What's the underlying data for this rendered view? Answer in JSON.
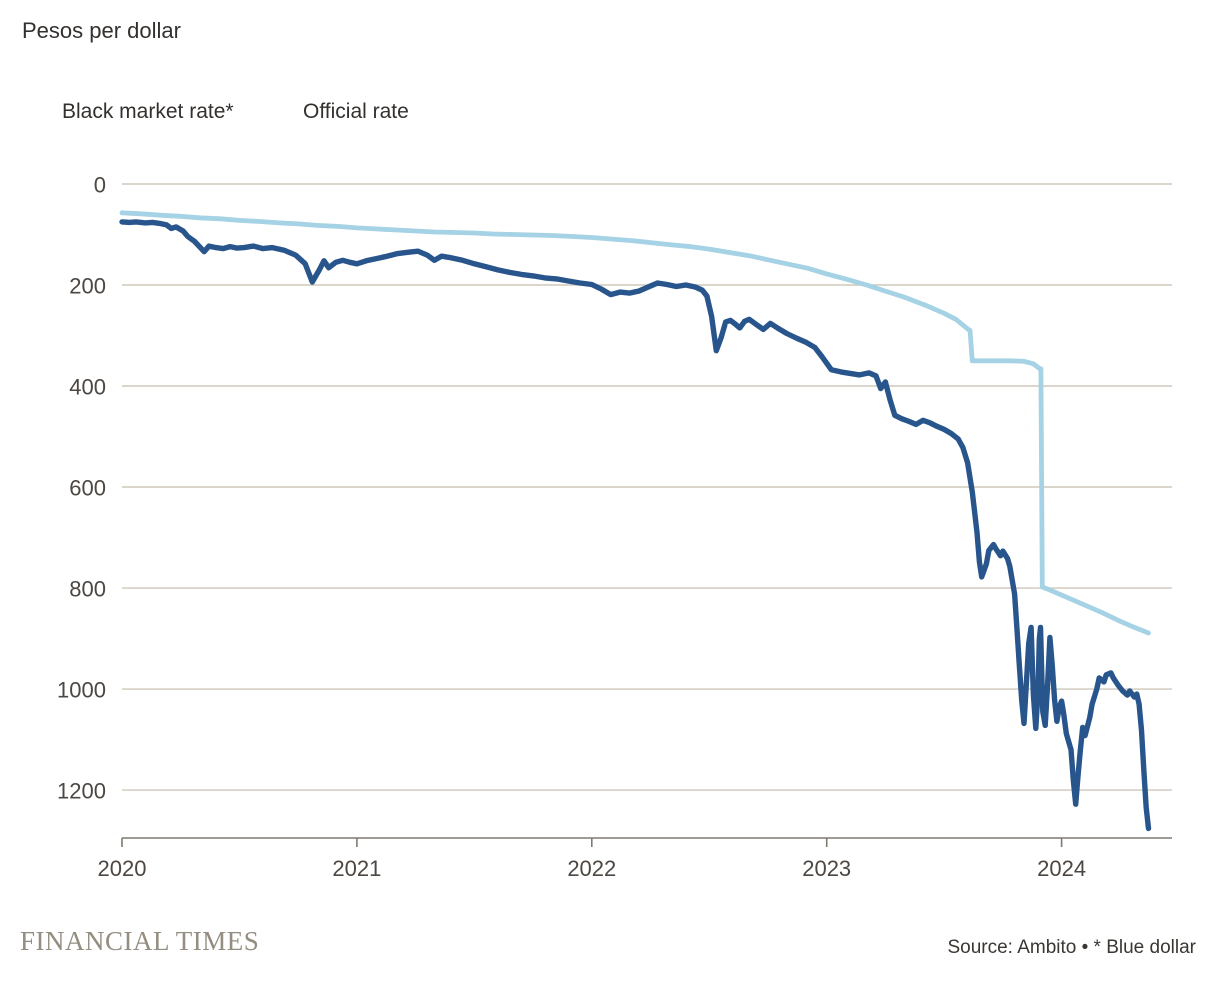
{
  "colors": {
    "background": "#ffffff",
    "gridline": "#cdc8ba",
    "axis": "#7f7a70",
    "text_primary": "#33302e",
    "text_axis": "#4c4742",
    "ft_brand": "#948d81"
  },
  "footer": {
    "brand": "FINANCIAL TIMES",
    "source": "Source: Ambito • * Blue dollar"
  },
  "chart_data": {
    "type": "line",
    "title": "Pesos per dollar",
    "xlabel": "",
    "ylabel": "Pesos per dollar",
    "legend_position": "top-left",
    "grid": true,
    "x_axis": {
      "ticks": [
        2020,
        2021,
        2022,
        2023,
        2024
      ],
      "range": [
        2020,
        2024.47
      ]
    },
    "y_axis": {
      "ticks": [
        0,
        200,
        400,
        600,
        800,
        1000,
        1200
      ],
      "range": [
        0,
        1295
      ],
      "inverted": true
    },
    "series": [
      {
        "name": "Black market rate*",
        "color": "#28558c",
        "points": [
          [
            2020.0,
            75
          ],
          [
            2020.03,
            76
          ],
          [
            2020.06,
            75
          ],
          [
            2020.1,
            77
          ],
          [
            2020.13,
            76
          ],
          [
            2020.16,
            78
          ],
          [
            2020.19,
            81
          ],
          [
            2020.21,
            88
          ],
          [
            2020.23,
            85
          ],
          [
            2020.26,
            93
          ],
          [
            2020.28,
            104
          ],
          [
            2020.31,
            114
          ],
          [
            2020.33,
            124
          ],
          [
            2020.35,
            134
          ],
          [
            2020.37,
            123
          ],
          [
            2020.4,
            126
          ],
          [
            2020.43,
            128
          ],
          [
            2020.46,
            124
          ],
          [
            2020.49,
            127
          ],
          [
            2020.52,
            126
          ],
          [
            2020.56,
            123
          ],
          [
            2020.6,
            128
          ],
          [
            2020.64,
            126
          ],
          [
            2020.69,
            131
          ],
          [
            2020.74,
            141
          ],
          [
            2020.78,
            158
          ],
          [
            2020.81,
            194
          ],
          [
            2020.84,
            170
          ],
          [
            2020.86,
            152
          ],
          [
            2020.88,
            166
          ],
          [
            2020.91,
            155
          ],
          [
            2020.94,
            151
          ],
          [
            2020.97,
            155
          ],
          [
            2021.0,
            158
          ],
          [
            2021.04,
            152
          ],
          [
            2021.08,
            148
          ],
          [
            2021.12,
            144
          ],
          [
            2021.17,
            138
          ],
          [
            2021.22,
            135
          ],
          [
            2021.26,
            133
          ],
          [
            2021.3,
            141
          ],
          [
            2021.33,
            151
          ],
          [
            2021.36,
            143
          ],
          [
            2021.4,
            146
          ],
          [
            2021.45,
            151
          ],
          [
            2021.5,
            158
          ],
          [
            2021.55,
            164
          ],
          [
            2021.6,
            170
          ],
          [
            2021.65,
            175
          ],
          [
            2021.7,
            179
          ],
          [
            2021.75,
            182
          ],
          [
            2021.8,
            186
          ],
          [
            2021.85,
            188
          ],
          [
            2021.9,
            192
          ],
          [
            2021.95,
            196
          ],
          [
            2022.0,
            199
          ],
          [
            2022.04,
            208
          ],
          [
            2022.08,
            219
          ],
          [
            2022.12,
            214
          ],
          [
            2022.16,
            216
          ],
          [
            2022.2,
            212
          ],
          [
            2022.24,
            204
          ],
          [
            2022.28,
            196
          ],
          [
            2022.32,
            199
          ],
          [
            2022.36,
            203
          ],
          [
            2022.4,
            200
          ],
          [
            2022.44,
            204
          ],
          [
            2022.47,
            210
          ],
          [
            2022.49,
            222
          ],
          [
            2022.51,
            262
          ],
          [
            2022.53,
            330
          ],
          [
            2022.55,
            305
          ],
          [
            2022.57,
            273
          ],
          [
            2022.59,
            270
          ],
          [
            2022.61,
            277
          ],
          [
            2022.63,
            285
          ],
          [
            2022.65,
            272
          ],
          [
            2022.67,
            268
          ],
          [
            2022.7,
            278
          ],
          [
            2022.73,
            288
          ],
          [
            2022.76,
            276
          ],
          [
            2022.79,
            285
          ],
          [
            2022.83,
            296
          ],
          [
            2022.87,
            305
          ],
          [
            2022.91,
            313
          ],
          [
            2022.95,
            324
          ],
          [
            2022.98,
            342
          ],
          [
            2023.02,
            368
          ],
          [
            2023.06,
            372
          ],
          [
            2023.1,
            375
          ],
          [
            2023.14,
            378
          ],
          [
            2023.18,
            374
          ],
          [
            2023.21,
            380
          ],
          [
            2023.23,
            405
          ],
          [
            2023.25,
            392
          ],
          [
            2023.27,
            428
          ],
          [
            2023.29,
            458
          ],
          [
            2023.32,
            465
          ],
          [
            2023.35,
            470
          ],
          [
            2023.38,
            476
          ],
          [
            2023.41,
            468
          ],
          [
            2023.44,
            473
          ],
          [
            2023.47,
            480
          ],
          [
            2023.5,
            486
          ],
          [
            2023.53,
            494
          ],
          [
            2023.56,
            505
          ],
          [
            2023.58,
            522
          ],
          [
            2023.6,
            552
          ],
          [
            2023.62,
            610
          ],
          [
            2023.64,
            690
          ],
          [
            2023.65,
            748
          ],
          [
            2023.66,
            778
          ],
          [
            2023.68,
            752
          ],
          [
            2023.69,
            726
          ],
          [
            2023.71,
            714
          ],
          [
            2023.72,
            722
          ],
          [
            2023.74,
            736
          ],
          [
            2023.75,
            727
          ],
          [
            2023.77,
            742
          ],
          [
            2023.78,
            758
          ],
          [
            2023.8,
            812
          ],
          [
            2023.81,
            882
          ],
          [
            2023.82,
            952
          ],
          [
            2023.83,
            1022
          ],
          [
            2023.84,
            1068
          ],
          [
            2023.85,
            988
          ],
          [
            2023.86,
            910
          ],
          [
            2023.87,
            878
          ],
          [
            2023.88,
            1012
          ],
          [
            2023.89,
            1078
          ],
          [
            2023.9,
            1002
          ],
          [
            2023.905,
            902
          ],
          [
            2023.91,
            878
          ],
          [
            2023.92,
            1045
          ],
          [
            2023.93,
            1072
          ],
          [
            2023.94,
            995
          ],
          [
            2023.95,
            898
          ],
          [
            2023.96,
            952
          ],
          [
            2023.97,
            1022
          ],
          [
            2023.98,
            1064
          ],
          [
            2023.99,
            1036
          ],
          [
            2024.0,
            1024
          ],
          [
            2024.01,
            1052
          ],
          [
            2024.02,
            1088
          ],
          [
            2024.04,
            1120
          ],
          [
            2024.05,
            1180
          ],
          [
            2024.06,
            1228
          ],
          [
            2024.07,
            1172
          ],
          [
            2024.08,
            1120
          ],
          [
            2024.09,
            1076
          ],
          [
            2024.1,
            1092
          ],
          [
            2024.12,
            1056
          ],
          [
            2024.13,
            1030
          ],
          [
            2024.15,
            1000
          ],
          [
            2024.16,
            978
          ],
          [
            2024.18,
            986
          ],
          [
            2024.19,
            972
          ],
          [
            2024.21,
            968
          ],
          [
            2024.22,
            978
          ],
          [
            2024.24,
            992
          ],
          [
            2024.26,
            1004
          ],
          [
            2024.28,
            1012
          ],
          [
            2024.29,
            1004
          ],
          [
            2024.31,
            1016
          ],
          [
            2024.32,
            1010
          ],
          [
            2024.33,
            1030
          ],
          [
            2024.34,
            1082
          ],
          [
            2024.35,
            1160
          ],
          [
            2024.36,
            1235
          ],
          [
            2024.37,
            1276
          ]
        ]
      },
      {
        "name": "Official rate",
        "color": "#a5d2e4",
        "points": [
          [
            2020.0,
            57
          ],
          [
            2020.08,
            59
          ],
          [
            2020.17,
            62
          ],
          [
            2020.25,
            64
          ],
          [
            2020.33,
            67
          ],
          [
            2020.42,
            69
          ],
          [
            2020.5,
            72
          ],
          [
            2020.58,
            74
          ],
          [
            2020.67,
            77
          ],
          [
            2020.75,
            79
          ],
          [
            2020.83,
            82
          ],
          [
            2020.92,
            84
          ],
          [
            2021.0,
            87
          ],
          [
            2021.08,
            89
          ],
          [
            2021.17,
            91
          ],
          [
            2021.25,
            93
          ],
          [
            2021.33,
            95
          ],
          [
            2021.42,
            96
          ],
          [
            2021.5,
            97
          ],
          [
            2021.58,
            99
          ],
          [
            2021.67,
            100
          ],
          [
            2021.75,
            101
          ],
          [
            2021.83,
            102
          ],
          [
            2021.92,
            104
          ],
          [
            2022.0,
            106
          ],
          [
            2022.08,
            109
          ],
          [
            2022.17,
            112
          ],
          [
            2022.25,
            116
          ],
          [
            2022.33,
            120
          ],
          [
            2022.42,
            124
          ],
          [
            2022.5,
            129
          ],
          [
            2022.58,
            135
          ],
          [
            2022.67,
            142
          ],
          [
            2022.75,
            150
          ],
          [
            2022.83,
            158
          ],
          [
            2022.92,
            167
          ],
          [
            2023.0,
            178
          ],
          [
            2023.08,
            188
          ],
          [
            2023.17,
            200
          ],
          [
            2023.25,
            212
          ],
          [
            2023.33,
            224
          ],
          [
            2023.42,
            240
          ],
          [
            2023.5,
            256
          ],
          [
            2023.55,
            268
          ],
          [
            2023.6,
            287
          ],
          [
            2023.61,
            290
          ],
          [
            2023.62,
            350
          ],
          [
            2023.7,
            350
          ],
          [
            2023.78,
            350
          ],
          [
            2023.84,
            351
          ],
          [
            2023.88,
            356
          ],
          [
            2023.905,
            365
          ],
          [
            2023.912,
            366
          ],
          [
            2023.918,
            798
          ],
          [
            2023.95,
            804
          ],
          [
            2024.0,
            814
          ],
          [
            2024.08,
            830
          ],
          [
            2024.17,
            848
          ],
          [
            2024.25,
            866
          ],
          [
            2024.31,
            878
          ],
          [
            2024.37,
            889
          ]
        ]
      }
    ]
  }
}
